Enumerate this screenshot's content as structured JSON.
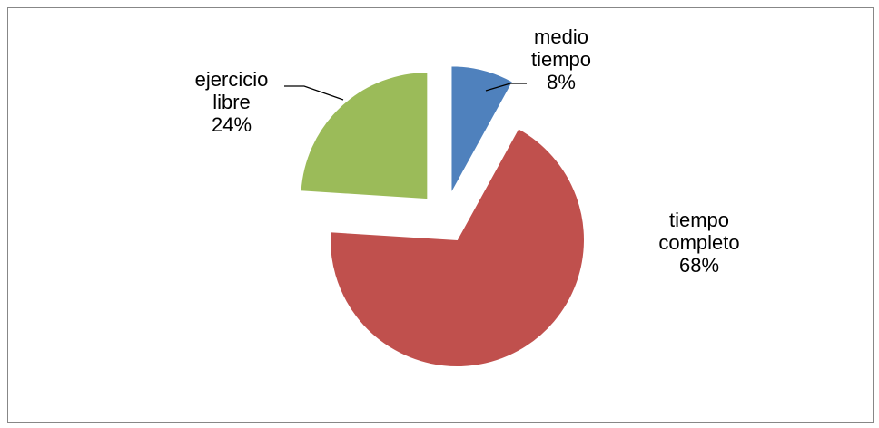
{
  "chart_data": {
    "type": "pie",
    "categories": [
      "medio tiempo",
      "tiempo completo",
      "ejercicio libre"
    ],
    "values": [
      8,
      68,
      24
    ],
    "value_labels": [
      "8%",
      "68%",
      "24%"
    ],
    "colors": [
      "#4f81bd",
      "#c0504d",
      "#9bbb59"
    ]
  }
}
